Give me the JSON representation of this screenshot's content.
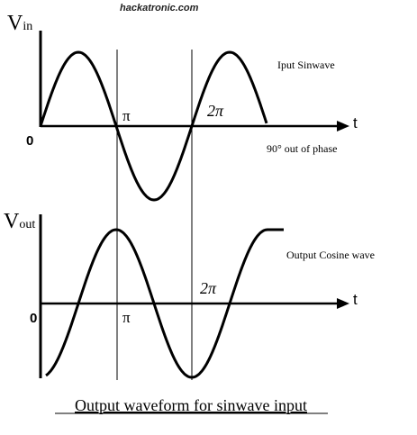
{
  "watermark": "hackatronic.com",
  "input": {
    "axis_symbol": "V",
    "axis_subscript": "in",
    "label": "Iput Sinwave",
    "origin": "0",
    "pi": "π",
    "two_pi": "2π",
    "t": "t",
    "note": "90° out of phase"
  },
  "output": {
    "axis_symbol": "V",
    "axis_subscript": "out",
    "label": "Output Cosine wave",
    "origin": "0",
    "pi": "π",
    "two_pi": "2π",
    "t": "t"
  },
  "caption": "Output waveform for sinwave input"
}
